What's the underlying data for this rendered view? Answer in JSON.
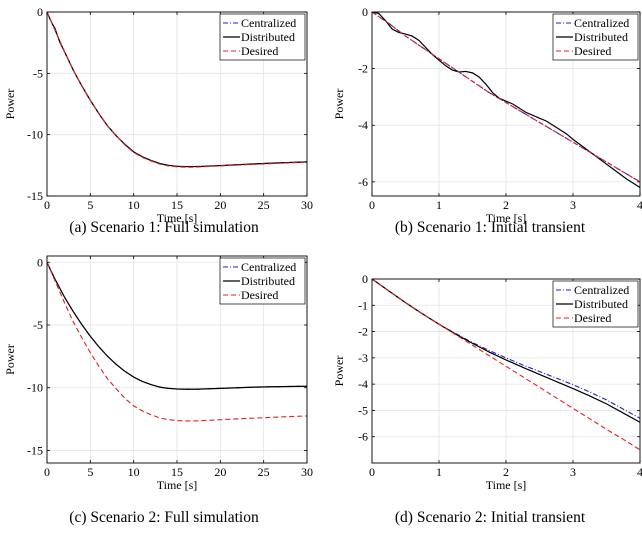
{
  "chart_data": [
    {
      "type": "line",
      "caption": "(a) Scenario 1: Full simulation",
      "xlabel": "Time [s]",
      "ylabel": "Power",
      "xlim": [
        0,
        30
      ],
      "ylim": [
        -15,
        0
      ],
      "xticks": [
        0,
        5,
        10,
        15,
        20,
        25,
        30
      ],
      "yticks": [
        0,
        -5,
        -10,
        -15
      ],
      "grid": true,
      "legend_position": "top-right",
      "series": [
        {
          "name": "Centralized",
          "color": "#1f1fd0",
          "style": "dashdot",
          "x": [
            0,
            0.5,
            1,
            1.5,
            2,
            3,
            4,
            5,
            6,
            7,
            8,
            9,
            10,
            11,
            12,
            13,
            14,
            15,
            16,
            17,
            18,
            20,
            22,
            24,
            26,
            28,
            30
          ],
          "y": [
            0,
            -0.8,
            -1.6,
            -2.4,
            -3.2,
            -4.7,
            -6.0,
            -7.2,
            -8.3,
            -9.3,
            -10.1,
            -10.8,
            -11.4,
            -11.8,
            -12.1,
            -12.35,
            -12.5,
            -12.58,
            -12.6,
            -12.6,
            -12.58,
            -12.52,
            -12.45,
            -12.38,
            -12.32,
            -12.27,
            -12.22
          ]
        },
        {
          "name": "Distributed",
          "color": "#000000",
          "style": "solid",
          "x": [
            0,
            0.3,
            0.6,
            0.9,
            1.2,
            1.5,
            2,
            3,
            4,
            5,
            6,
            7,
            8,
            9,
            10,
            11,
            12,
            13,
            14,
            15,
            16,
            17,
            18,
            20,
            22,
            24,
            26,
            28,
            30
          ],
          "y": [
            0,
            -0.5,
            -0.95,
            -1.3,
            -1.9,
            -2.5,
            -3.2,
            -4.7,
            -6.0,
            -7.2,
            -8.3,
            -9.3,
            -10.1,
            -10.8,
            -11.4,
            -11.8,
            -12.1,
            -12.35,
            -12.5,
            -12.58,
            -12.6,
            -12.6,
            -12.58,
            -12.52,
            -12.45,
            -12.38,
            -12.32,
            -12.27,
            -12.22
          ]
        },
        {
          "name": "Desired",
          "color": "#e02020",
          "style": "dashed",
          "x": [
            0,
            0.5,
            1,
            1.5,
            2,
            3,
            4,
            5,
            6,
            7,
            8,
            9,
            10,
            11,
            12,
            13,
            14,
            15,
            16,
            17,
            18,
            20,
            22,
            24,
            26,
            28,
            30
          ],
          "y": [
            0,
            -0.8,
            -1.6,
            -2.4,
            -3.2,
            -4.7,
            -6.0,
            -7.2,
            -8.3,
            -9.3,
            -10.1,
            -10.85,
            -11.45,
            -11.85,
            -12.15,
            -12.4,
            -12.55,
            -12.62,
            -12.65,
            -12.65,
            -12.62,
            -12.55,
            -12.48,
            -12.42,
            -12.36,
            -12.3,
            -12.25
          ]
        }
      ]
    },
    {
      "type": "line",
      "caption": "(b) Scenario 1: Initial transient",
      "xlabel": "Time [s]",
      "ylabel": "Power",
      "xlim": [
        0,
        4
      ],
      "ylim": [
        -6.5,
        0
      ],
      "xticks": [
        0,
        1,
        2,
        3,
        4
      ],
      "yticks": [
        0,
        -2,
        -4,
        -6
      ],
      "grid": true,
      "legend_position": "top-right",
      "series": [
        {
          "name": "Centralized",
          "color": "#1f1fd0",
          "style": "dashdot",
          "x": [
            0,
            0.25,
            0.5,
            0.75,
            1,
            1.25,
            1.5,
            1.75,
            2,
            2.25,
            2.5,
            2.75,
            3,
            3.25,
            3.5,
            3.75,
            4
          ],
          "y": [
            0,
            -0.4,
            -0.85,
            -1.25,
            -1.65,
            -2.05,
            -2.45,
            -2.85,
            -3.2,
            -3.55,
            -3.9,
            -4.25,
            -4.6,
            -4.95,
            -5.3,
            -5.65,
            -6.0
          ]
        },
        {
          "name": "Distributed",
          "color": "#000000",
          "style": "solid",
          "x": [
            0,
            0.1,
            0.2,
            0.3,
            0.4,
            0.5,
            0.6,
            0.7,
            0.8,
            0.9,
            1.0,
            1.1,
            1.2,
            1.3,
            1.4,
            1.5,
            1.6,
            1.7,
            1.8,
            1.9,
            2.0,
            2.1,
            2.2,
            2.3,
            2.4,
            2.5,
            2.6,
            2.7,
            2.8,
            2.9,
            3.0,
            3.2,
            3.4,
            3.6,
            3.8,
            4.0
          ],
          "y": [
            0,
            -0.05,
            -0.3,
            -0.6,
            -0.72,
            -0.78,
            -0.85,
            -1.0,
            -1.25,
            -1.5,
            -1.7,
            -1.9,
            -2.05,
            -2.12,
            -2.1,
            -2.15,
            -2.3,
            -2.55,
            -2.85,
            -3.05,
            -3.15,
            -3.25,
            -3.4,
            -3.55,
            -3.65,
            -3.75,
            -3.85,
            -4.0,
            -4.15,
            -4.3,
            -4.5,
            -4.85,
            -5.2,
            -5.55,
            -5.9,
            -6.2
          ]
        },
        {
          "name": "Desired",
          "color": "#e02020",
          "style": "dashed",
          "x": [
            0,
            0.25,
            0.5,
            0.75,
            1,
            1.25,
            1.5,
            1.75,
            2,
            2.25,
            2.5,
            2.75,
            3,
            3.25,
            3.5,
            3.75,
            4
          ],
          "y": [
            0,
            -0.4,
            -0.85,
            -1.25,
            -1.65,
            -2.05,
            -2.45,
            -2.85,
            -3.2,
            -3.55,
            -3.9,
            -4.25,
            -4.6,
            -4.95,
            -5.3,
            -5.65,
            -6.0
          ]
        }
      ]
    },
    {
      "type": "line",
      "caption": "(c) Scenario 2: Full simulation",
      "xlabel": "Time [s]",
      "ylabel": "Power",
      "xlim": [
        0,
        30
      ],
      "ylim": [
        -16,
        0.5
      ],
      "xticks": [
        0,
        5,
        10,
        15,
        20,
        25,
        30
      ],
      "yticks": [
        0,
        -5,
        -10,
        -15
      ],
      "grid": true,
      "legend_position": "top-right",
      "series": [
        {
          "name": "Centralized",
          "color": "#1f1fd0",
          "style": "dashdot",
          "x": [
            0,
            0.5,
            1,
            1.5,
            2,
            3,
            4,
            5,
            6,
            7,
            8,
            9,
            10,
            11,
            12,
            13,
            14,
            15,
            16,
            17,
            18,
            20,
            22,
            24,
            26,
            28,
            30
          ],
          "y": [
            0,
            -0.75,
            -1.45,
            -2.1,
            -2.75,
            -3.9,
            -4.95,
            -5.9,
            -6.75,
            -7.5,
            -8.15,
            -8.7,
            -9.15,
            -9.5,
            -9.75,
            -9.95,
            -10.05,
            -10.1,
            -10.12,
            -10.12,
            -10.1,
            -10.05,
            -10.0,
            -9.95,
            -9.92,
            -9.9,
            -9.88
          ]
        },
        {
          "name": "Distributed",
          "color": "#000000",
          "style": "solid",
          "x": [
            0,
            0.5,
            1,
            1.5,
            2,
            3,
            4,
            5,
            6,
            7,
            8,
            9,
            10,
            11,
            12,
            13,
            14,
            15,
            16,
            17,
            18,
            20,
            22,
            24,
            26,
            28,
            30
          ],
          "y": [
            0,
            -0.75,
            -1.45,
            -2.1,
            -2.75,
            -3.9,
            -4.95,
            -5.9,
            -6.75,
            -7.5,
            -8.15,
            -8.7,
            -9.15,
            -9.5,
            -9.75,
            -9.95,
            -10.05,
            -10.1,
            -10.12,
            -10.12,
            -10.1,
            -10.05,
            -10.0,
            -9.95,
            -9.92,
            -9.9,
            -9.88
          ]
        },
        {
          "name": "Desired",
          "color": "#e02020",
          "style": "dashed",
          "x": [
            0,
            0.5,
            1,
            1.5,
            2,
            3,
            4,
            5,
            6,
            7,
            8,
            9,
            10,
            11,
            12,
            13,
            14,
            15,
            16,
            17,
            18,
            20,
            22,
            24,
            26,
            28,
            30
          ],
          "y": [
            0,
            -0.8,
            -1.6,
            -2.4,
            -3.2,
            -4.7,
            -6.0,
            -7.2,
            -8.3,
            -9.3,
            -10.1,
            -10.85,
            -11.45,
            -11.85,
            -12.15,
            -12.4,
            -12.55,
            -12.62,
            -12.65,
            -12.65,
            -12.62,
            -12.55,
            -12.48,
            -12.42,
            -12.36,
            -12.3,
            -12.25
          ]
        }
      ]
    },
    {
      "type": "line",
      "caption": "(d) Scenario 2: Initial transient",
      "xlabel": "Time [s]",
      "ylabel": "Power",
      "xlim": [
        0,
        4
      ],
      "ylim": [
        -7,
        0
      ],
      "xticks": [
        0,
        1,
        2,
        3,
        4
      ],
      "yticks": [
        0,
        -1,
        -2,
        -3,
        -4,
        -5,
        -6
      ],
      "grid": true,
      "legend_position": "top-right",
      "series": [
        {
          "name": "Centralized",
          "color": "#1f1fd0",
          "style": "dashdot",
          "x": [
            0,
            0.25,
            0.5,
            0.75,
            1,
            1.25,
            1.5,
            1.75,
            2,
            2.25,
            2.5,
            2.75,
            3,
            3.25,
            3.5,
            3.75,
            4
          ],
          "y": [
            0,
            -0.45,
            -0.9,
            -1.32,
            -1.72,
            -2.08,
            -2.42,
            -2.72,
            -3.0,
            -3.27,
            -3.52,
            -3.77,
            -4.02,
            -4.3,
            -4.6,
            -4.95,
            -5.3
          ]
        },
        {
          "name": "Distributed",
          "color": "#000000",
          "style": "solid",
          "x": [
            0,
            0.25,
            0.5,
            0.75,
            1,
            1.25,
            1.5,
            1.75,
            2,
            2.25,
            2.5,
            2.75,
            3,
            3.25,
            3.5,
            3.75,
            4
          ],
          "y": [
            0,
            -0.45,
            -0.9,
            -1.32,
            -1.72,
            -2.1,
            -2.45,
            -2.78,
            -3.08,
            -3.36,
            -3.63,
            -3.9,
            -4.17,
            -4.45,
            -4.75,
            -5.1,
            -5.45
          ]
        },
        {
          "name": "Desired",
          "color": "#e02020",
          "style": "dashed",
          "x": [
            0,
            0.25,
            0.5,
            0.75,
            1,
            1.25,
            1.5,
            1.75,
            2,
            2.25,
            2.5,
            2.75,
            3,
            3.25,
            3.5,
            3.75,
            4
          ],
          "y": [
            0,
            -0.45,
            -0.9,
            -1.32,
            -1.72,
            -2.12,
            -2.52,
            -2.92,
            -3.32,
            -3.72,
            -4.12,
            -4.52,
            -4.92,
            -5.32,
            -5.72,
            -6.1,
            -6.5
          ]
        }
      ]
    }
  ]
}
